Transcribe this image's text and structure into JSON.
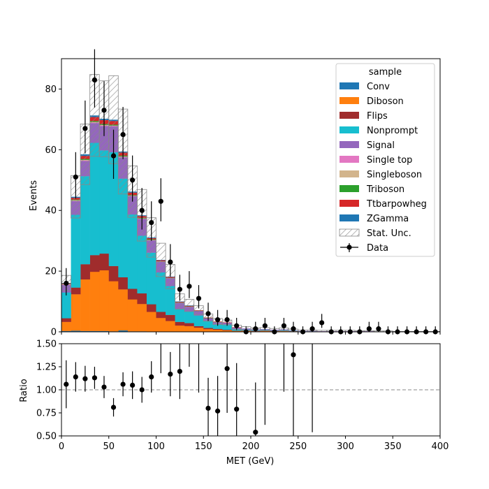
{
  "chart_data": {
    "type": "bar",
    "subtype": "stacked-histogram-with-ratio",
    "x_edges_step": 10,
    "x_min": 0,
    "x_max": 400,
    "xlabel": "MET (GeV)",
    "main": {
      "ylabel": "Events",
      "ylim": [
        0,
        90
      ],
      "yticks": [
        0,
        20,
        40,
        60,
        80
      ]
    },
    "ratio": {
      "ylabel": "Ratio",
      "ylim": [
        0.5,
        1.5
      ],
      "yticks": [
        "0.50",
        "0.75",
        "1.00",
        "1.25",
        "1.50"
      ],
      "reference_line": 1.0
    },
    "xticks": [
      0,
      50,
      100,
      150,
      200,
      250,
      300,
      350,
      400
    ],
    "legend": {
      "title": "sample",
      "placement": "top-right",
      "entries": [
        "Conv",
        "Diboson",
        "Flips",
        "Nonprompt",
        "Signal",
        "Single top",
        "Singleboson",
        "Triboson",
        "Ttbarpowheg",
        "ZGamma",
        "Stat. Unc.",
        "Data"
      ]
    },
    "colors": {
      "Conv": "#1f77b4",
      "Diboson": "#ff7f0e",
      "Flips": "#a02c2c",
      "Nonprompt": "#17becf",
      "Signal": "#9467bd",
      "Single top": "#e377c2",
      "Singleboson": "#d2b48c",
      "Triboson": "#2ca02c",
      "Ttbarpowheg": "#d62728",
      "ZGamma": "#1f77b4",
      "Data": "#000000",
      "Stat. Unc.": "#808080"
    },
    "series": [
      {
        "name": "Conv",
        "values": [
          0.3,
          0.4,
          0.3,
          0.3,
          0.3,
          0.2,
          0.5,
          0.2,
          0.2,
          0.1,
          0.1,
          0.1,
          0.1,
          0.1,
          0.1,
          0.1,
          0.1,
          0,
          0,
          0,
          0,
          0,
          0,
          0,
          0,
          0,
          0,
          0,
          0,
          0,
          0,
          0,
          0,
          0,
          0,
          0,
          0,
          0,
          0,
          0
        ]
      },
      {
        "name": "Diboson",
        "values": [
          3,
          12,
          17,
          19.5,
          20,
          16.5,
          13.5,
          10.5,
          9,
          6.5,
          4.5,
          3.5,
          2,
          1.8,
          1.3,
          0.8,
          0.6,
          0.5,
          0.3,
          0.3,
          0.2,
          0.3,
          0.2,
          0.3,
          0.2,
          0.1,
          0.1,
          0.1,
          0.1,
          0.1,
          0.1,
          0.1,
          0.1,
          0.1,
          0.1,
          0.05,
          0.05,
          0.05,
          0.05,
          0.05
        ]
      },
      {
        "name": "Flips",
        "values": [
          1.2,
          2.2,
          5,
          5.5,
          5.5,
          5,
          4,
          3.5,
          3.5,
          2.5,
          2,
          2,
          1.2,
          1,
          0.5,
          0.4,
          0.3,
          0.2,
          0.1,
          0.1,
          0.1,
          0.1,
          0.1,
          0.1,
          0.1,
          0,
          0,
          0,
          0,
          0,
          0,
          0,
          0,
          0,
          0,
          0,
          0,
          0,
          0,
          0
        ]
      },
      {
        "name": "Nonprompt",
        "values": [
          8.5,
          24,
          29,
          37,
          34,
          37.5,
          32.5,
          24.5,
          19,
          17,
          13,
          9.5,
          4.2,
          3.8,
          3.5,
          2.4,
          1.6,
          1.8,
          0.6,
          0.4,
          0.3,
          0.3,
          0.2,
          0.2,
          0.1,
          0.1,
          0.1,
          0,
          0,
          0,
          0,
          0,
          0,
          0,
          0,
          0,
          0,
          0,
          0,
          0
        ]
      },
      {
        "name": "Signal",
        "values": [
          2.5,
          4.5,
          5,
          6.5,
          8,
          8.5,
          7,
          6,
          5.5,
          4,
          3.5,
          2.5,
          2,
          1.5,
          1.5,
          0.8,
          0.6,
          0.5,
          0.4,
          0.3,
          0.2,
          0.2,
          0.2,
          0.2,
          0.1,
          0.1,
          0.1,
          0.1,
          0.1,
          0.1,
          0.1,
          0.1,
          0.1,
          0,
          0,
          0,
          0,
          0,
          0,
          0
        ]
      },
      {
        "name": "Single top",
        "values": [
          0.1,
          0.1,
          0.2,
          0.2,
          0.2,
          0.2,
          0.2,
          0.1,
          0.1,
          0.1,
          0.1,
          0.1,
          0.1,
          0.1,
          0,
          0,
          0,
          0,
          0,
          0,
          0,
          0,
          0,
          0,
          0,
          0,
          0,
          0,
          0,
          0,
          0,
          0,
          0,
          0,
          0,
          0,
          0,
          0,
          0,
          0
        ]
      },
      {
        "name": "Singleboson",
        "values": [
          0.1,
          0.2,
          0.2,
          0.2,
          0.2,
          0.1,
          0.1,
          0.1,
          0.1,
          0.1,
          0,
          0,
          0,
          0,
          0,
          0,
          0,
          0,
          0,
          0,
          0,
          0,
          0,
          0,
          0,
          0,
          0,
          0,
          0,
          0,
          0,
          0,
          0,
          0,
          0,
          0,
          0,
          0,
          0,
          0
        ]
      },
      {
        "name": "Triboson",
        "values": [
          0.1,
          0.2,
          0.3,
          0.3,
          0.3,
          0.3,
          0.3,
          0.2,
          0.2,
          0.2,
          0.1,
          0.1,
          0.1,
          0.1,
          0.1,
          0.1,
          0.1,
          0,
          0,
          0,
          0,
          0,
          0,
          0,
          0,
          0,
          0,
          0,
          0,
          0,
          0,
          0,
          0,
          0,
          0,
          0,
          0,
          0,
          0,
          0
        ]
      },
      {
        "name": "Ttbarpowheg",
        "values": [
          0.2,
          0.6,
          1,
          1.3,
          1.3,
          1.2,
          1,
          0.8,
          0.6,
          0.4,
          0.3,
          0.3,
          0.2,
          0.2,
          0.1,
          0.1,
          0.1,
          0.1,
          0.1,
          0,
          0,
          0,
          0,
          0,
          0,
          0,
          0,
          0,
          0,
          0,
          0,
          0,
          0,
          0,
          0,
          0,
          0,
          0,
          0,
          0
        ]
      },
      {
        "name": "ZGamma",
        "values": [
          0.1,
          0.3,
          0.5,
          0.5,
          0.4,
          0.4,
          0.3,
          0.3,
          0.2,
          0.2,
          0.1,
          0.1,
          0.1,
          0.1,
          0,
          0,
          0,
          0,
          0,
          0,
          0,
          0,
          0,
          0,
          0,
          0,
          0,
          0,
          0,
          0,
          0,
          0,
          0,
          0,
          0,
          0,
          0,
          0,
          0,
          0
        ]
      }
    ],
    "stat_unc": [
      2.5,
      7,
      10,
      13.5,
      12.5,
      14.5,
      14,
      8.5,
      8.5,
      6.5,
      5.5,
      4,
      2.5,
      2,
      1.5,
      1.2,
      1,
      0.8,
      0.7,
      0.6,
      0.5,
      0.5,
      0.4,
      0.5,
      0.4,
      0.3,
      0.3,
      0.3,
      0.3,
      0.3,
      0.3,
      0.2,
      0.2,
      0.2,
      0.2,
      0.1,
      0.1,
      0.1,
      0.1,
      0.1
    ],
    "data": {
      "x": [
        5,
        15,
        25,
        35,
        45,
        55,
        65,
        75,
        85,
        95,
        105,
        115,
        125,
        135,
        145,
        155,
        165,
        175,
        185,
        195,
        205,
        215,
        225,
        235,
        245,
        255,
        265,
        275,
        285,
        295,
        305,
        315,
        325,
        335,
        345,
        355,
        365,
        375,
        385,
        395
      ],
      "y": [
        16,
        51,
        67,
        83,
        73,
        58,
        65,
        50,
        40,
        36,
        43,
        23,
        14,
        15,
        11,
        6,
        4,
        4,
        2,
        0,
        1,
        2,
        0,
        2,
        1,
        0,
        1,
        3,
        0,
        0,
        0,
        0,
        1,
        1,
        0,
        0,
        0,
        0,
        0,
        0
      ],
      "yerr_low": [
        4,
        7.1,
        8.2,
        9.1,
        8.5,
        7.6,
        8.1,
        7.1,
        6.3,
        6,
        6.6,
        4.8,
        3.7,
        3.9,
        3.3,
        2.4,
        2,
        2,
        1.4,
        0,
        1,
        1.4,
        0,
        1.4,
        1,
        0,
        1,
        1.7,
        0,
        0,
        0,
        0,
        1,
        1,
        0,
        0,
        0,
        0,
        0,
        0
      ],
      "yerr_high": [
        5,
        8.2,
        9.2,
        10.1,
        9.6,
        8.6,
        9.1,
        8.1,
        7.4,
        7,
        7.6,
        5.9,
        4.8,
        5,
        4.4,
        3.6,
        3.2,
        3.2,
        2.6,
        1.8,
        2.3,
        2.6,
        1.8,
        2.6,
        2.3,
        1.8,
        2.3,
        2.9,
        1.8,
        1.8,
        1.8,
        1.8,
        2.3,
        2.3,
        1.8,
        1.8,
        1.8,
        1.8,
        1.8,
        1.8
      ]
    },
    "ratio_points": {
      "x": [
        5,
        15,
        25,
        35,
        45,
        55,
        65,
        75,
        85,
        95,
        115,
        125,
        155,
        165,
        175,
        185,
        205,
        245
      ],
      "y": [
        1.06,
        1.14,
        1.12,
        1.13,
        1.03,
        0.81,
        1.06,
        1.05,
        1.0,
        1.14,
        1.17,
        1.2,
        0.8,
        0.77,
        1.23,
        0.79,
        0.54,
        1.38
      ],
      "err": [
        0.26,
        0.16,
        0.14,
        0.12,
        0.12,
        0.1,
        0.13,
        0.15,
        0.14,
        0.17,
        0.24,
        0.3,
        0.33,
        0.38,
        0.48,
        0.5,
        0.54,
        0.9
      ]
    },
    "ratio_bars_only": {
      "x": [
        105,
        135,
        145,
        215,
        235,
        265
      ],
      "low": [
        1.18,
        1.25,
        0.97,
        0.62,
        0.98,
        0.54
      ],
      "high": [
        1.5,
        1.5,
        1.5,
        1.5,
        1.5,
        1.5
      ]
    }
  }
}
